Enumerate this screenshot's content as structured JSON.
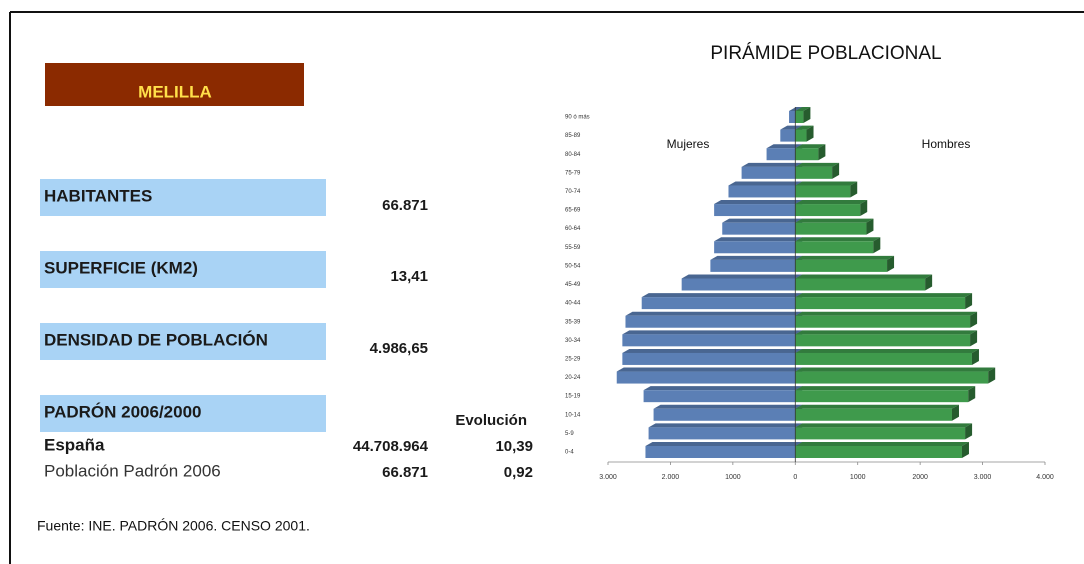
{
  "header": {
    "region": "MELILLA"
  },
  "rows": [
    {
      "label": "HABITANTES",
      "value": "66.871"
    },
    {
      "label": "SUPERFICIE (KM2)",
      "value": "13,41"
    },
    {
      "label": "DENSIDAD DE POBLACIÓN",
      "value": "4.986,65"
    }
  ],
  "padron": {
    "label": "PADRÓN 2006/2000",
    "column": "Evolución",
    "rows": [
      {
        "label": "España",
        "value": "44.708.964",
        "evolution": "10,39"
      },
      {
        "label": "Población Padrón 2006",
        "value": "66.871",
        "evolution": "0,92"
      }
    ]
  },
  "source": "Fuente: INE. PADRÓN 2006. CENSO 2001.",
  "chart_data": {
    "type": "pyramid",
    "title": "PIRÁMIDE POBLACIONAL",
    "categories": [
      "0-4",
      "5-9",
      "10-14",
      "15-19",
      "20-24",
      "25-29",
      "30-34",
      "35-39",
      "40-44",
      "45-49",
      "50-54",
      "55-59",
      "60-64",
      "65-69",
      "70-74",
      "75-79",
      "80-84",
      "85-89",
      "90 ó más"
    ],
    "series": [
      {
        "name": "Mujeres",
        "color": "#5b7fb5",
        "values": [
          -2400,
          -2350,
          -2270,
          -2430,
          -2860,
          -2770,
          -2770,
          -2720,
          -2460,
          -1820,
          -1360,
          -1300,
          -1170,
          -1300,
          -1070,
          -860,
          -460,
          -240,
          -100
        ]
      },
      {
        "name": "Hombres",
        "color": "#3f9a4c",
        "values": [
          2670,
          2720,
          2510,
          2770,
          3090,
          2830,
          2800,
          2800,
          2720,
          2080,
          1470,
          1250,
          1140,
          1040,
          880,
          590,
          370,
          180,
          130
        ]
      }
    ],
    "xlim": [
      -3000,
      4000
    ],
    "xticks": [
      {
        "value": -3000,
        "label": "3.000"
      },
      {
        "value": -2000,
        "label": "2.000"
      },
      {
        "value": -1000,
        "label": "1000"
      },
      0,
      1000,
      2000,
      {
        "value": 3000,
        "label": "3.000"
      },
      {
        "value": 4000,
        "label": "4.000"
      }
    ]
  }
}
